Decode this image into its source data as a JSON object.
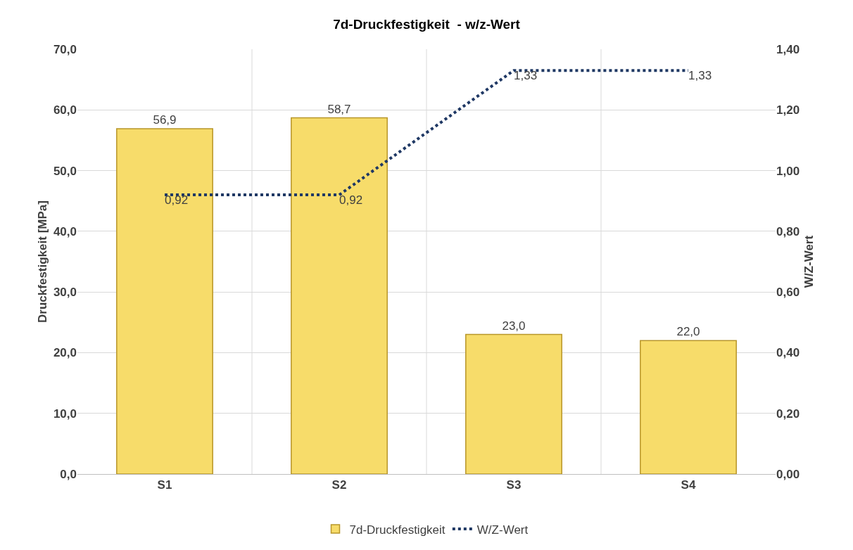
{
  "chart_data": {
    "type": "bar",
    "title": "7d-Druckfestigkeit  - w/z-Wert",
    "ylabel": "Druckfestigkeit [MPa]",
    "y2label": "W/Z-Wert",
    "categories": [
      "S1",
      "S2",
      "S3",
      "S4"
    ],
    "series": [
      {
        "name": "7d-Druckfestigkeit",
        "color": "#f7dc6a",
        "values": [
          56.9,
          58.7,
          23.0,
          22.0
        ],
        "value_labels": [
          "56,9",
          "58,7",
          "23,0",
          "22,0"
        ]
      },
      {
        "name": "W/Z-Wert",
        "type": "line",
        "axis": "y2",
        "color": "#1f3864",
        "line_style": "dotted",
        "marker": "none",
        "values": [
          0.92,
          0.92,
          1.33,
          1.33
        ],
        "value_labels": [
          "0,92",
          "0,92",
          "1,33",
          "1,33"
        ]
      }
    ],
    "ylim": [
      0,
      70
    ],
    "yticks": [
      {
        "value": 0,
        "label": "0,0"
      },
      {
        "value": 10,
        "label": "10,0"
      },
      {
        "value": 20,
        "label": "20,0"
      },
      {
        "value": 30,
        "label": "30,0"
      },
      {
        "value": 40,
        "label": "40,0"
      },
      {
        "value": 50,
        "label": "50,0"
      },
      {
        "value": 60,
        "label": "60,0"
      },
      {
        "value": 70,
        "label": "70,0"
      }
    ],
    "y2lim": [
      0,
      1.4
    ],
    "y2ticks": [
      {
        "value": 0,
        "label": "0,00"
      },
      {
        "value": 0.2,
        "label": "0,20"
      },
      {
        "value": 0.4,
        "label": "0,40"
      },
      {
        "value": 0.6,
        "label": "0,60"
      },
      {
        "value": 0.8,
        "label": "0,80"
      },
      {
        "value": 1.0,
        "label": "1,00"
      },
      {
        "value": 1.2,
        "label": "1,20"
      },
      {
        "value": 1.4,
        "label": "1,40"
      }
    ],
    "grid": true,
    "legend": "bottom"
  }
}
